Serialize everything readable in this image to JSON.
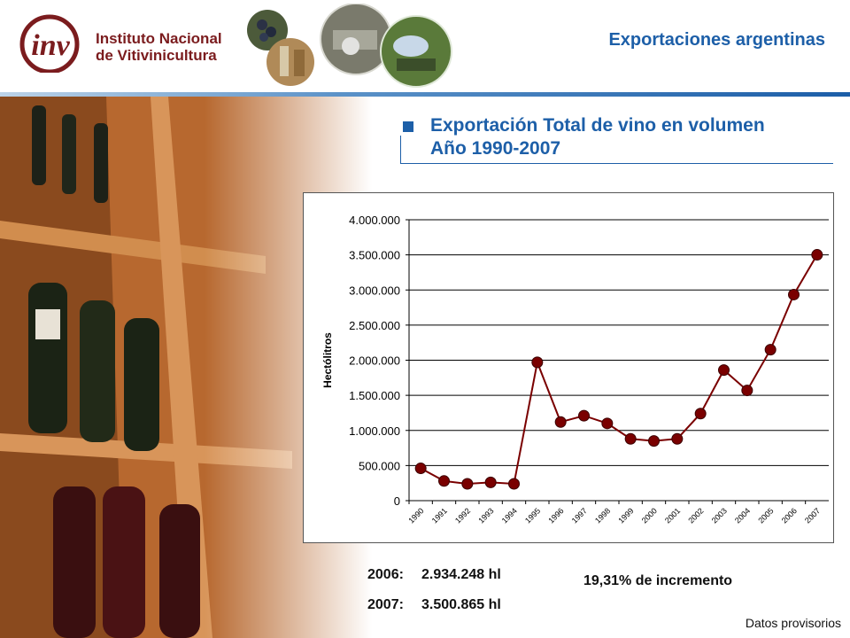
{
  "header": {
    "logo_line1": "Instituto Nacional",
    "logo_line2": "de Vitivinicultura",
    "logo_mark": "inv",
    "section_title": "Exportaciones argentinas"
  },
  "slide": {
    "title_line1": "Exportación Total de vino en volumen",
    "title_line2": "Año 1990-2007"
  },
  "chart_data": {
    "type": "line",
    "title": "",
    "xlabel": "",
    "ylabel": "Hectólitros",
    "categories": [
      "1990",
      "1991",
      "1992",
      "1993",
      "1994",
      "1995",
      "1996",
      "1997",
      "1998",
      "1999",
      "2000",
      "2001",
      "2002",
      "2003",
      "2004",
      "2005",
      "2006",
      "2007"
    ],
    "series": [
      {
        "values": [
          460000,
          280000,
          240000,
          260000,
          240000,
          1970000,
          1120000,
          1210000,
          1100000,
          880000,
          850000,
          880000,
          1240000,
          1860000,
          1570000,
          2150000,
          2934248,
          3500865
        ],
        "color": "#7a0000"
      }
    ],
    "yticks": [
      "0",
      "500.000",
      "1.000.000",
      "1.500.000",
      "2.000.000",
      "2.500.000",
      "3.000.000",
      "3.500.000",
      "4.000.000"
    ],
    "ylim": [
      0,
      4000000
    ],
    "grid": true,
    "legend": "none"
  },
  "stats": {
    "y2006_label": "2006:",
    "y2006_value": "2.934.248 hl",
    "y2007_label": "2007:",
    "y2007_value": "3.500.865 hl",
    "increase": "19,31% de incremento"
  },
  "footer": {
    "note": "Datos provisorios"
  },
  "colors": {
    "brand_blue": "#1d5fa8",
    "brand_red": "#7b1c1e",
    "marker": "#7a0000"
  }
}
